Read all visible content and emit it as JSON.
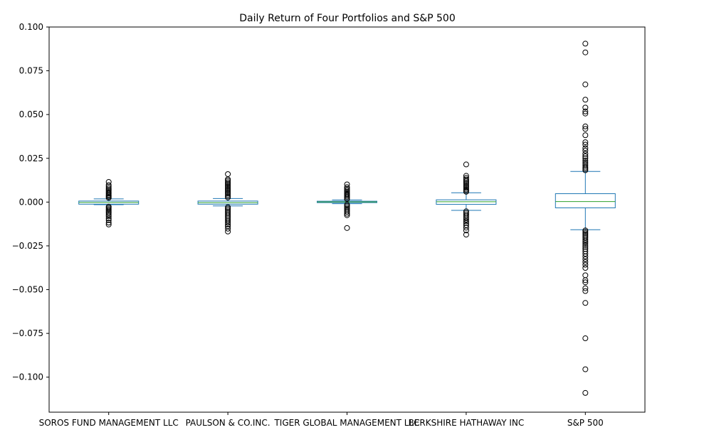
{
  "chart_data": {
    "type": "box",
    "title": "Daily Return of Four Portfolios and S&P 500",
    "xlabel": "",
    "ylabel": "",
    "ylim": [
      -0.12,
      0.1
    ],
    "yticks": [
      0.1,
      0.075,
      0.05,
      0.025,
      0.0,
      -0.025,
      -0.05,
      -0.075,
      -0.1
    ],
    "ytick_labels": [
      "0.100",
      "0.075",
      "0.050",
      "0.025",
      "0.000",
      "−0.025",
      "−0.050",
      "−0.075",
      "−0.100"
    ],
    "grid": false,
    "colors": {
      "box": "#1f77b4",
      "median": "#2ca02c",
      "outlier": "#000000"
    },
    "series": [
      {
        "name": "SOROS FUND MANAGEMENT LLC",
        "q1": -0.0012,
        "median": -0.0002,
        "q3": 0.0006,
        "whisker_low": -0.0015,
        "whisker_high": 0.0018,
        "outliers": [
          0.0115,
          0.0097,
          0.0088,
          0.0079,
          0.0071,
          0.0063,
          0.0056,
          0.0049,
          0.0042,
          0.0036,
          0.003,
          0.0024,
          -0.0026,
          -0.0033,
          -0.004,
          -0.0047,
          -0.0055,
          -0.0063,
          -0.0072,
          -0.0081,
          -0.0093,
          -0.0103,
          -0.0117,
          -0.0128
        ]
      },
      {
        "name": "PAULSON & CO.INC.",
        "q1": -0.0012,
        "median": -0.0003,
        "q3": 0.0006,
        "whisker_low": -0.0022,
        "whisker_high": 0.002,
        "outliers": [
          0.016,
          0.013,
          0.0122,
          0.0113,
          0.0105,
          0.0097,
          0.0089,
          0.0081,
          0.0073,
          0.0065,
          0.0057,
          0.0049,
          0.0041,
          0.0033,
          0.0026,
          -0.0029,
          -0.0037,
          -0.0045,
          -0.0054,
          -0.0063,
          -0.0072,
          -0.0081,
          -0.009,
          -0.0099,
          -0.0108,
          -0.0118,
          -0.0128,
          -0.0138,
          -0.0152,
          -0.0168
        ]
      },
      {
        "name": "TIGER GLOBAL MANAGEMENT LLC",
        "q1": -0.0003,
        "median": 0.0001,
        "q3": 0.0005,
        "whisker_low": -0.0009,
        "whisker_high": 0.0012,
        "outliers": [
          0.0101,
          0.0085,
          0.0076,
          0.0068,
          0.006,
          0.0052,
          0.0045,
          0.0038,
          0.0031,
          0.0024,
          0.0017,
          -0.0015,
          -0.0022,
          -0.003,
          -0.0038,
          -0.0047,
          -0.0056,
          -0.0066,
          -0.0075,
          -0.0148
        ]
      },
      {
        "name": "BERKSHIRE HATHAWAY INC",
        "q1": -0.0013,
        "median": 0.0002,
        "q3": 0.0013,
        "whisker_low": -0.0047,
        "whisker_high": 0.0053,
        "outliers": [
          0.0215,
          0.015,
          0.0138,
          0.0129,
          0.012,
          0.0112,
          0.0104,
          0.0096,
          0.0088,
          0.008,
          0.0072,
          0.0065,
          0.0059,
          -0.0053,
          -0.0062,
          -0.0071,
          -0.008,
          -0.009,
          -0.01,
          -0.011,
          -0.012,
          -0.0132,
          -0.0146,
          -0.0162,
          -0.0186
        ]
      },
      {
        "name": "S&P 500",
        "q1": -0.0033,
        "median": 0.0003,
        "q3": 0.0048,
        "whisker_low": -0.0158,
        "whisker_high": 0.0175,
        "outliers": [
          0.0905,
          0.0855,
          0.0672,
          0.0585,
          0.054,
          0.0518,
          0.0506,
          0.0432,
          0.0418,
          0.0382,
          0.0342,
          0.0328,
          0.0308,
          0.0294,
          0.0276,
          0.0262,
          0.025,
          0.0238,
          0.0228,
          0.0218,
          0.0208,
          0.0198,
          0.019,
          0.0182,
          -0.0162,
          -0.017,
          -0.0178,
          -0.0186,
          -0.0195,
          -0.0204,
          -0.0214,
          -0.0224,
          -0.0234,
          -0.0245,
          -0.0256,
          -0.0268,
          -0.0281,
          -0.0295,
          -0.031,
          -0.0326,
          -0.0342,
          -0.0358,
          -0.0376,
          -0.0418,
          -0.0446,
          -0.0458,
          -0.0492,
          -0.0508,
          -0.0576,
          -0.0778,
          -0.0955,
          -0.109
        ]
      }
    ]
  }
}
